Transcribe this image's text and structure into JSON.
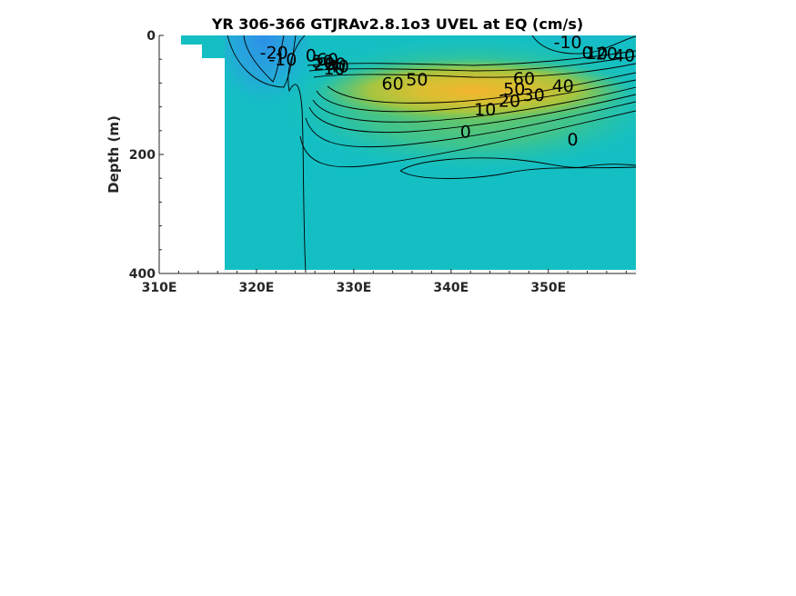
{
  "chart_data": {
    "type": "contour",
    "title": "YR 306-366 GTJRAv2.8.1o3 UVEL at EQ (cm/s)",
    "xlabel": "",
    "ylabel": "Depth (m)",
    "x_ticks": [
      {
        "value": 310,
        "label": "310E"
      },
      {
        "value": 320,
        "label": "320E"
      },
      {
        "value": 330,
        "label": "330E"
      },
      {
        "value": 340,
        "label": "340E"
      },
      {
        "value": 350,
        "label": "350E"
      }
    ],
    "y_ticks": [
      {
        "value": 0,
        "label": "0"
      },
      {
        "value": 200,
        "label": "200"
      },
      {
        "value": 400,
        "label": "400"
      }
    ],
    "xlim": [
      310,
      359
    ],
    "ylim": [
      400,
      0
    ],
    "y_reversed": true,
    "grid": false,
    "land_mask": "west of ~317E below ~20 m",
    "colors": {
      "background_flow": "#14bfc4",
      "westward_min": "#2b93e6",
      "core_max": "#f2b233"
    },
    "contour_labels": [
      {
        "text": "-20",
        "x": 321.8,
        "y": 28
      },
      {
        "text": "-10",
        "x": 322.7,
        "y": 40
      },
      {
        "text": "0",
        "x": 325.6,
        "y": 33
      },
      {
        "text": "50",
        "x": 326.8,
        "y": 43
      },
      {
        "text": "60",
        "x": 327.3,
        "y": 40
      },
      {
        "text": "30",
        "x": 328.1,
        "y": 47
      },
      {
        "text": "20",
        "x": 327.0,
        "y": 47
      },
      {
        "text": "40",
        "x": 328.4,
        "y": 51
      },
      {
        "text": "10",
        "x": 328.0,
        "y": 55
      },
      {
        "text": "-10",
        "x": 352.0,
        "y": 11
      },
      {
        "text": "0",
        "x": 354.0,
        "y": 28
      },
      {
        "text": "10",
        "x": 355.0,
        "y": 29
      },
      {
        "text": "20",
        "x": 356.0,
        "y": 30
      },
      {
        "text": "40",
        "x": 357.8,
        "y": 33
      },
      {
        "text": "60",
        "x": 334.0,
        "y": 80
      },
      {
        "text": "50",
        "x": 336.5,
        "y": 73
      },
      {
        "text": "60",
        "x": 347.5,
        "y": 72
      },
      {
        "text": "50",
        "x": 346.5,
        "y": 89
      },
      {
        "text": "40",
        "x": 351.5,
        "y": 84
      },
      {
        "text": "30",
        "x": 348.5,
        "y": 99
      },
      {
        "text": "20",
        "x": 346.0,
        "y": 109
      },
      {
        "text": "10",
        "x": 343.5,
        "y": 124
      },
      {
        "text": "0",
        "x": 341.5,
        "y": 161
      },
      {
        "text": "0",
        "x": 352.5,
        "y": 174
      }
    ]
  }
}
